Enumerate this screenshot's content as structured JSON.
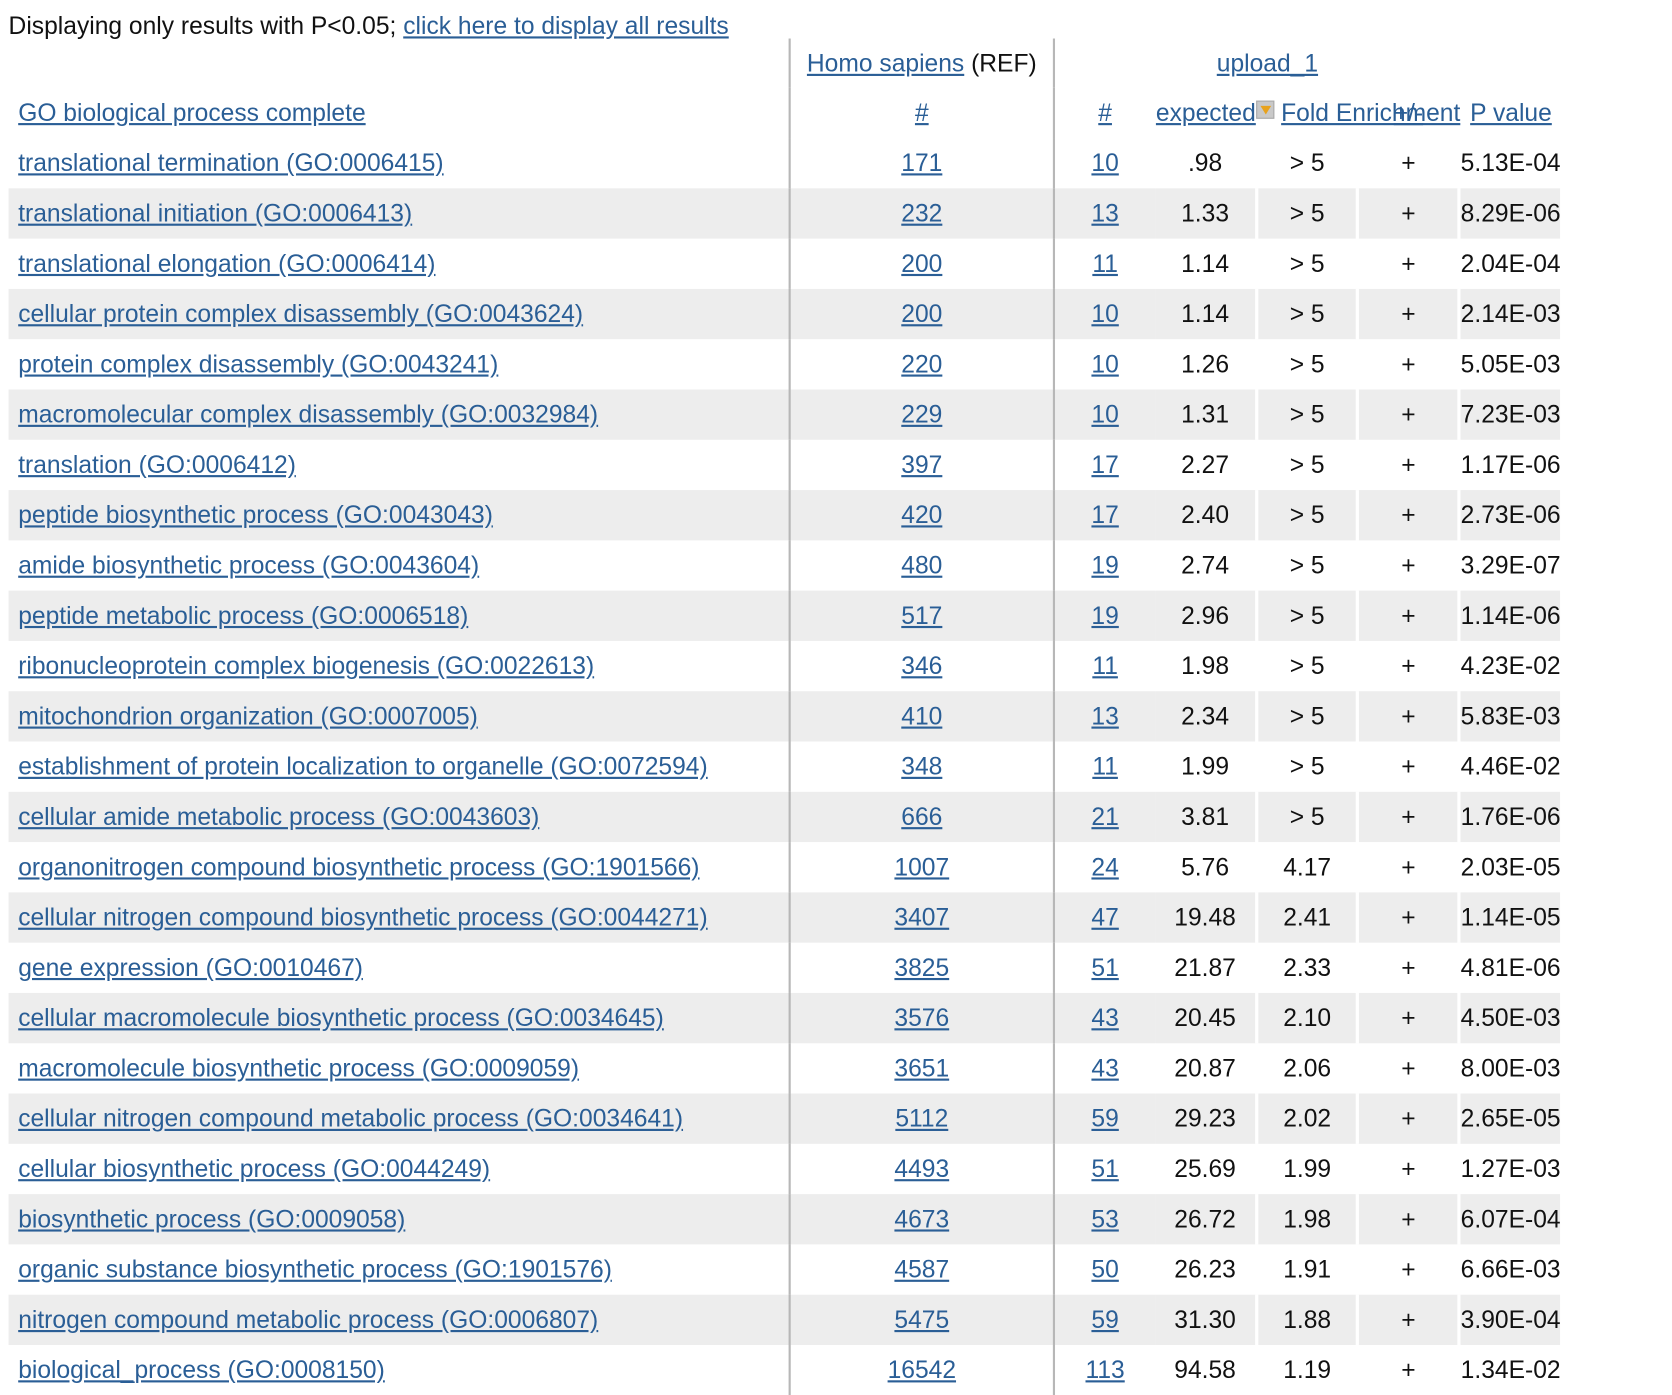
{
  "filter_note": {
    "text": "Displaying only results with P<0.05;",
    "link": "click here to display all results"
  },
  "header": {
    "ref_species": "Homo sapiens",
    "ref_tag": "(REF)",
    "upload_name": "upload_1",
    "col_name": "GO biological process complete",
    "col_ref_count": "#",
    "col_count": "#",
    "col_expected": "expected",
    "col_fold": "Fold Enrichment",
    "col_sign": "+/-",
    "col_pvalue": "P value",
    "sort_icon": "sort-descending-icon"
  },
  "rows": [
    {
      "term": "translational termination (GO:0006415)",
      "ref": "171",
      "count": "10",
      "expected": ".98",
      "fold": "> 5",
      "sign": "+",
      "pvalue": "5.13E-04"
    },
    {
      "term": "translational initiation (GO:0006413)",
      "ref": "232",
      "count": "13",
      "expected": "1.33",
      "fold": "> 5",
      "sign": "+",
      "pvalue": "8.29E-06"
    },
    {
      "term": "translational elongation (GO:0006414)",
      "ref": "200",
      "count": "11",
      "expected": "1.14",
      "fold": "> 5",
      "sign": "+",
      "pvalue": "2.04E-04"
    },
    {
      "term": "cellular protein complex disassembly (GO:0043624)",
      "ref": "200",
      "count": "10",
      "expected": "1.14",
      "fold": "> 5",
      "sign": "+",
      "pvalue": "2.14E-03"
    },
    {
      "term": "protein complex disassembly (GO:0043241)",
      "ref": "220",
      "count": "10",
      "expected": "1.26",
      "fold": "> 5",
      "sign": "+",
      "pvalue": "5.05E-03"
    },
    {
      "term": "macromolecular complex disassembly (GO:0032984)",
      "ref": "229",
      "count": "10",
      "expected": "1.31",
      "fold": "> 5",
      "sign": "+",
      "pvalue": "7.23E-03"
    },
    {
      "term": "translation (GO:0006412)",
      "ref": "397",
      "count": "17",
      "expected": "2.27",
      "fold": "> 5",
      "sign": "+",
      "pvalue": "1.17E-06"
    },
    {
      "term": "peptide biosynthetic process (GO:0043043)",
      "ref": "420",
      "count": "17",
      "expected": "2.40",
      "fold": "> 5",
      "sign": "+",
      "pvalue": "2.73E-06"
    },
    {
      "term": "amide biosynthetic process (GO:0043604)",
      "ref": "480",
      "count": "19",
      "expected": "2.74",
      "fold": "> 5",
      "sign": "+",
      "pvalue": "3.29E-07"
    },
    {
      "term": "peptide metabolic process (GO:0006518)",
      "ref": "517",
      "count": "19",
      "expected": "2.96",
      "fold": "> 5",
      "sign": "+",
      "pvalue": "1.14E-06"
    },
    {
      "term": "ribonucleoprotein complex biogenesis (GO:0022613)",
      "ref": "346",
      "count": "11",
      "expected": "1.98",
      "fold": "> 5",
      "sign": "+",
      "pvalue": "4.23E-02"
    },
    {
      "term": "mitochondrion organization (GO:0007005)",
      "ref": "410",
      "count": "13",
      "expected": "2.34",
      "fold": "> 5",
      "sign": "+",
      "pvalue": "5.83E-03"
    },
    {
      "term": "establishment of protein localization to organelle (GO:0072594)",
      "ref": "348",
      "count": "11",
      "expected": "1.99",
      "fold": "> 5",
      "sign": "+",
      "pvalue": "4.46E-02"
    },
    {
      "term": "cellular amide metabolic process (GO:0043603)",
      "ref": "666",
      "count": "21",
      "expected": "3.81",
      "fold": "> 5",
      "sign": "+",
      "pvalue": "1.76E-06"
    },
    {
      "term": "organonitrogen compound biosynthetic process (GO:1901566)",
      "ref": "1007",
      "count": "24",
      "expected": "5.76",
      "fold": "4.17",
      "sign": "+",
      "pvalue": "2.03E-05"
    },
    {
      "term": "cellular nitrogen compound biosynthetic process (GO:0044271)",
      "ref": "3407",
      "count": "47",
      "expected": "19.48",
      "fold": "2.41",
      "sign": "+",
      "pvalue": "1.14E-05"
    },
    {
      "term": "gene expression (GO:0010467)",
      "ref": "3825",
      "count": "51",
      "expected": "21.87",
      "fold": "2.33",
      "sign": "+",
      "pvalue": "4.81E-06"
    },
    {
      "term": "cellular macromolecule biosynthetic process (GO:0034645)",
      "ref": "3576",
      "count": "43",
      "expected": "20.45",
      "fold": "2.10",
      "sign": "+",
      "pvalue": "4.50E-03"
    },
    {
      "term": "macromolecule biosynthetic process (GO:0009059)",
      "ref": "3651",
      "count": "43",
      "expected": "20.87",
      "fold": "2.06",
      "sign": "+",
      "pvalue": "8.00E-03"
    },
    {
      "term": "cellular nitrogen compound metabolic process (GO:0034641)",
      "ref": "5112",
      "count": "59",
      "expected": "29.23",
      "fold": "2.02",
      "sign": "+",
      "pvalue": "2.65E-05"
    },
    {
      "term": "cellular biosynthetic process (GO:0044249)",
      "ref": "4493",
      "count": "51",
      "expected": "25.69",
      "fold": "1.99",
      "sign": "+",
      "pvalue": "1.27E-03"
    },
    {
      "term": "biosynthetic process (GO:0009058)",
      "ref": "4673",
      "count": "53",
      "expected": "26.72",
      "fold": "1.98",
      "sign": "+",
      "pvalue": "6.07E-04"
    },
    {
      "term": "organic substance biosynthetic process (GO:1901576)",
      "ref": "4587",
      "count": "50",
      "expected": "26.23",
      "fold": "1.91",
      "sign": "+",
      "pvalue": "6.66E-03"
    },
    {
      "term": "nitrogen compound metabolic process (GO:0006807)",
      "ref": "5475",
      "count": "59",
      "expected": "31.30",
      "fold": "1.88",
      "sign": "+",
      "pvalue": "3.90E-04"
    },
    {
      "term": "biological_process (GO:0008150)",
      "ref": "16542",
      "count": "113",
      "expected": "94.58",
      "fold": "1.19",
      "sign": "+",
      "pvalue": "1.34E-02"
    }
  ],
  "colors": {
    "link": "#2a5e96",
    "row_stripe": "#ededed",
    "divider": "#b7b7b7",
    "sort_icon_arrow": "#e8a21d"
  }
}
